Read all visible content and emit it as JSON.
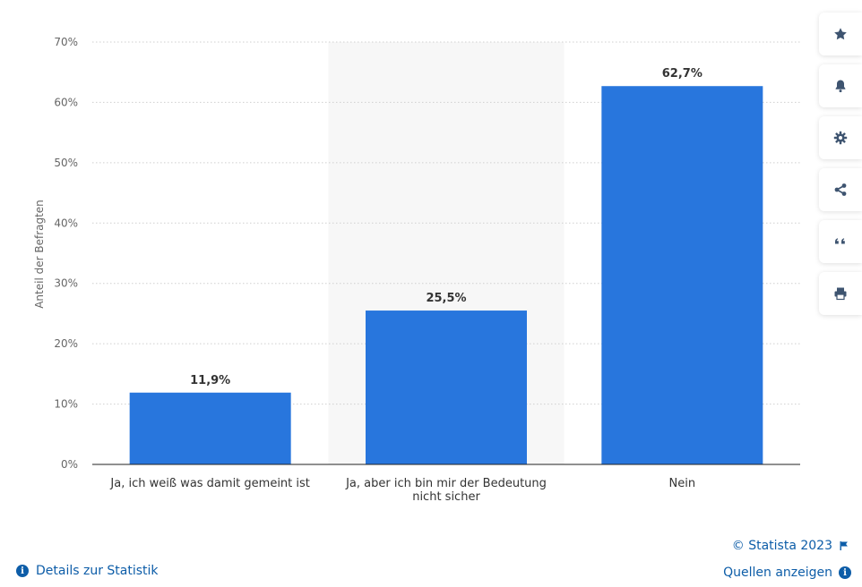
{
  "chart_data": {
    "type": "bar",
    "categories": [
      [
        "Ja, ich weiß was damit gemeint ist"
      ],
      [
        "Ja, aber ich bin mir der Bedeutung",
        "nicht sicher"
      ],
      [
        "Nein"
      ]
    ],
    "values": [
      11.9,
      25.5,
      62.7
    ],
    "value_labels": [
      "11,9%",
      "25,5%",
      "62,7%"
    ],
    "ylabel": "Anteil der Befragten",
    "ylim": [
      0,
      70
    ],
    "yticks": [
      0,
      10,
      20,
      30,
      40,
      50,
      60,
      70
    ],
    "ytick_labels": [
      "0%",
      "10%",
      "20%",
      "30%",
      "40%",
      "50%",
      "60%",
      "70%"
    ],
    "grid": true,
    "highlighted_category": 1,
    "bar_color": "#2876dd"
  },
  "toolbar": {
    "buttons": [
      {
        "name": "favorite-button",
        "icon": "star-icon"
      },
      {
        "name": "notification-button",
        "icon": "bell-icon"
      },
      {
        "name": "settings-button",
        "icon": "gear-icon"
      },
      {
        "name": "share-button",
        "icon": "share-icon"
      },
      {
        "name": "cite-button",
        "icon": "quote-icon"
      },
      {
        "name": "print-button",
        "icon": "printer-icon"
      }
    ],
    "icon_color": "#3e5470"
  },
  "footer": {
    "copyright": "© Statista 2023",
    "details_link": "Details zur Statistik",
    "sources_link": "Quellen anzeigen",
    "link_color": "#0d5da8"
  }
}
